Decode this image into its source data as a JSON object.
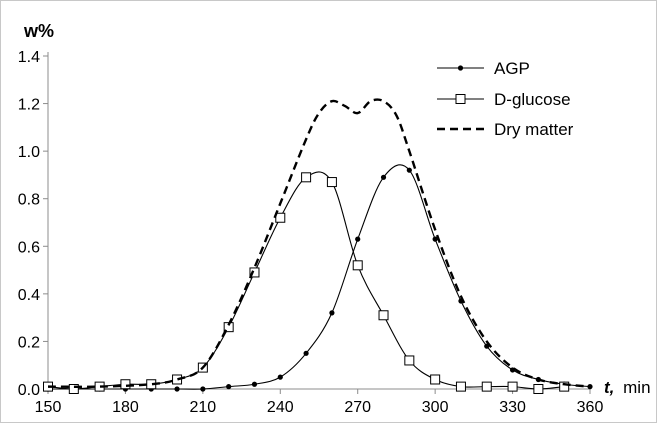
{
  "chart_data": {
    "type": "line",
    "ylabel": "w%",
    "xlabel_italic": "t,",
    "xlabel_unit": "min",
    "xlim": [
      150,
      360
    ],
    "ylim": [
      0,
      1.4
    ],
    "x_ticks": [
      150,
      180,
      210,
      240,
      270,
      300,
      330,
      360
    ],
    "x_tick_labels": [
      "150",
      "180",
      "210",
      "240",
      "270",
      "300",
      "330",
      "360"
    ],
    "y_ticks": [
      0,
      0.2,
      0.4,
      0.6,
      0.8,
      1.0,
      1.2,
      1.4
    ],
    "y_tick_labels": [
      "0.0",
      "0.2",
      "0.4",
      "0.6",
      "0.8",
      "1.0",
      "1.2",
      "1.4"
    ],
    "grid": false,
    "legend_position": "top-right",
    "series": [
      {
        "name": "AGP",
        "style": "line-dot",
        "color": "#000000",
        "x": [
          150,
          160,
          170,
          180,
          190,
          200,
          210,
          220,
          230,
          240,
          250,
          260,
          270,
          280,
          290,
          300,
          310,
          320,
          330,
          340,
          350,
          360
        ],
        "values": [
          0.0,
          0.0,
          0.0,
          0.0,
          0.0,
          0.0,
          0.0,
          0.01,
          0.02,
          0.05,
          0.15,
          0.32,
          0.63,
          0.89,
          0.92,
          0.63,
          0.37,
          0.18,
          0.08,
          0.04,
          0.02,
          0.01
        ]
      },
      {
        "name": "D-glucose",
        "style": "line-square",
        "color": "#000000",
        "x": [
          150,
          160,
          170,
          180,
          190,
          200,
          210,
          220,
          230,
          240,
          250,
          260,
          270,
          280,
          290,
          300,
          310,
          320,
          330,
          340,
          350
        ],
        "values": [
          0.01,
          0.0,
          0.01,
          0.02,
          0.02,
          0.04,
          0.09,
          0.26,
          0.49,
          0.72,
          0.89,
          0.87,
          0.52,
          0.31,
          0.12,
          0.04,
          0.01,
          0.01,
          0.01,
          0.0,
          0.01
        ]
      },
      {
        "name": "Dry matter",
        "style": "dashed",
        "color": "#000000",
        "x": [
          150,
          170,
          190,
          200,
          210,
          220,
          230,
          240,
          250,
          255,
          260,
          265,
          270,
          275,
          280,
          285,
          290,
          300,
          310,
          320,
          330,
          340,
          350,
          360
        ],
        "values": [
          0.01,
          0.01,
          0.02,
          0.04,
          0.09,
          0.27,
          0.51,
          0.78,
          1.05,
          1.16,
          1.21,
          1.19,
          1.16,
          1.21,
          1.21,
          1.15,
          1.0,
          0.67,
          0.39,
          0.2,
          0.09,
          0.04,
          0.02,
          0.01
        ]
      }
    ]
  }
}
